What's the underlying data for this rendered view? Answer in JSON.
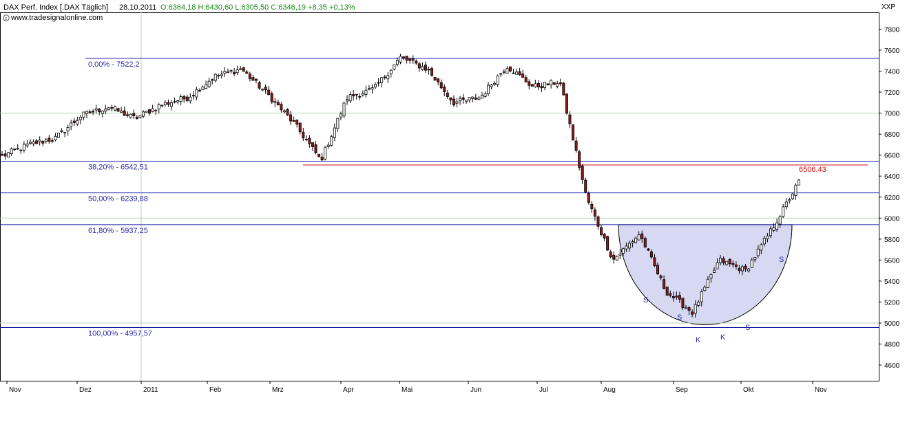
{
  "header": {
    "symbol": "DAX Perf. Index [.DAX  Täglich]",
    "date": "28.10.2011",
    "ohlc": "O:6364,18 H:6430,60 L:6305,50 C:6346,19 +8,35 +0,13%",
    "source": "www.tradesignalonline.com",
    "axis_tag": "XXP"
  },
  "colors": {
    "up": "#ffffff",
    "down": "#8b1a1a",
    "fib_line": "#1a1aa8",
    "resistance": "#cc1111",
    "bowl_fill": "#c9cbee",
    "grid": "#b4d4b4",
    "ohlc_text": "#1a8a1a"
  },
  "chart_data": {
    "type": "candlestick",
    "title": "DAX Perf. Index",
    "x_labels": [
      "Nov",
      "Dez",
      "2011",
      "Feb",
      "Mrz",
      "Apr",
      "Mai",
      "Jun",
      "Jul",
      "Aug",
      "Sep",
      "Okt",
      "Nov"
    ],
    "y_ticks": [
      4600,
      4800,
      5000,
      5200,
      5400,
      5600,
      5800,
      6000,
      6200,
      6400,
      6600,
      6800,
      7000,
      7200,
      7400,
      7600,
      7800
    ],
    "y_tick_labels": [
      "4600",
      "4800",
      "5000",
      "5200",
      "5400",
      "5600",
      "5800",
      "6000",
      "6200",
      "6400",
      "6600",
      "6800",
      "7000",
      "7200",
      "7400",
      "7600",
      "7800"
    ],
    "ylim": [
      4450,
      7960
    ],
    "grid_horizontal": [
      5000,
      6000,
      7000
    ],
    "grid_vertical_label": "2011",
    "fibonacci_levels": [
      {
        "label": "0,00% - 7522,2",
        "value": 7522.2
      },
      {
        "label": "38,20% - 6542,51",
        "value": 6542.51
      },
      {
        "label": "50,00% - 6239,88",
        "value": 6239.88
      },
      {
        "label": "61,80% - 5937,25",
        "value": 5937.25
      },
      {
        "label": "100,00% - 4957,57",
        "value": 4957.57
      }
    ],
    "resistance": {
      "label": "6506,43",
      "value": 6506.43,
      "from": "Mrz"
    },
    "pattern_labels": [
      "S",
      "S",
      "K",
      "K",
      "S",
      "S"
    ],
    "series": [
      {
        "points": [
          {
            "x": "Nov",
            "y": 6590
          },
          {
            "x": "Nov",
            "y": 6700
          },
          {
            "x": "Nov",
            "y": 6760
          },
          {
            "x": "Dez",
            "y": 6980
          },
          {
            "x": "Dez",
            "y": 7060
          },
          {
            "x": "2011",
            "y": 6950
          },
          {
            "x": "2011",
            "y": 7080
          },
          {
            "x": "Feb",
            "y": 7150
          },
          {
            "x": "Feb",
            "y": 7350
          },
          {
            "x": "Feb",
            "y": 7420
          },
          {
            "x": "Mrz",
            "y": 7180
          },
          {
            "x": "Mrz",
            "y": 6900
          },
          {
            "x": "Mrz",
            "y": 6550
          },
          {
            "x": "Apr",
            "y": 7150
          },
          {
            "x": "Apr",
            "y": 7230
          },
          {
            "x": "Mai",
            "y": 7530
          },
          {
            "x": "Mai",
            "y": 7420
          },
          {
            "x": "Jun",
            "y": 7100
          },
          {
            "x": "Jun",
            "y": 7150
          },
          {
            "x": "Jul",
            "y": 7450
          },
          {
            "x": "Jul",
            "y": 7250
          },
          {
            "x": "Jul",
            "y": 7300
          },
          {
            "x": "Aug",
            "y": 6200
          },
          {
            "x": "Aug",
            "y": 5600
          },
          {
            "x": "Aug",
            "y": 5850
          },
          {
            "x": "Sep",
            "y": 5300
          },
          {
            "x": "Sep",
            "y": 5100
          },
          {
            "x": "Sep",
            "y": 5600
          },
          {
            "x": "Okt",
            "y": 5500
          },
          {
            "x": "Okt",
            "y": 5900
          },
          {
            "x": "Okt",
            "y": 6346
          }
        ]
      }
    ]
  }
}
